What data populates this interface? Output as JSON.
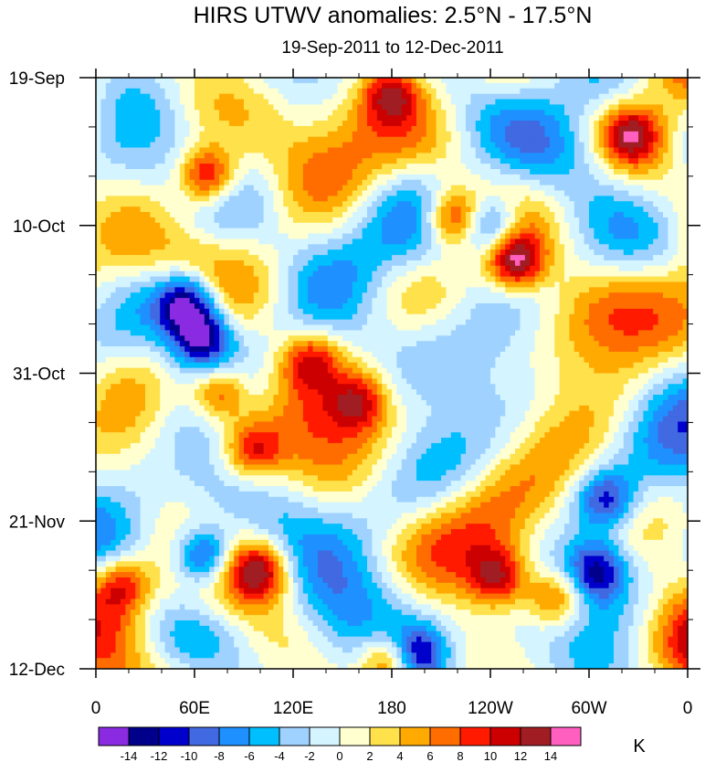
{
  "chart_data": {
    "type": "heatmap",
    "title": "HIRS UTWV anomalies: 2.5°N - 17.5°N",
    "subtitle": "19-Sep-2011 to 12-Dec-2011",
    "xlabel": "",
    "ylabel": "",
    "x_tick_labels": [
      "0",
      "60E",
      "120E",
      "180",
      "120W",
      "60W",
      "0"
    ],
    "x_tick_longitudes": [
      0,
      60,
      120,
      180,
      240,
      300,
      360
    ],
    "y_tick_labels": [
      "19-Sep",
      "10-Oct",
      "31-Oct",
      "21-Nov",
      "12-Dec"
    ],
    "y_tick_day_offsets": [
      0,
      21,
      42,
      63,
      84
    ],
    "xlim": [
      0,
      360
    ],
    "ylim_days": [
      0,
      84
    ],
    "colorbar": {
      "unit": "K",
      "levels": [
        -14,
        -12,
        -10,
        -8,
        -6,
        -4,
        -2,
        0,
        2,
        4,
        6,
        8,
        10,
        12,
        14
      ],
      "level_labels": [
        "-14",
        "-12",
        "-10",
        "-8",
        "-6",
        "-4",
        "-2",
        "0",
        "2",
        "4",
        "6",
        "8",
        "10",
        "12",
        "14"
      ],
      "colors": [
        "#8a2be2",
        "#00008b",
        "#0000cd",
        "#4169e1",
        "#1e90ff",
        "#00bfff",
        "#a0d2ff",
        "#d4f4ff",
        "#ffffd0",
        "#ffe14b",
        "#ffaa00",
        "#ff6d00",
        "#ff1a00",
        "#cc0000",
        "#a01e23",
        "#ff60c0"
      ]
    },
    "anomaly_centers": [
      {
        "lon": 68,
        "day": 14,
        "value": 14,
        "name": "positive"
      },
      {
        "lon": 218,
        "day": 20,
        "value": 13,
        "name": "positive"
      },
      {
        "lon": 255,
        "day": 26,
        "value": 15,
        "name": "positive"
      },
      {
        "lon": 55,
        "day": 32,
        "value": -14,
        "name": "negative"
      },
      {
        "lon": 65,
        "day": 37,
        "value": -13,
        "name": "negative"
      },
      {
        "lon": 75,
        "day": 45,
        "value": 11,
        "name": "positive"
      },
      {
        "lon": 95,
        "day": 53,
        "value": 10,
        "name": "positive"
      },
      {
        "lon": 65,
        "day": 68,
        "value": -15,
        "name": "negative"
      },
      {
        "lon": 100,
        "day": 70,
        "value": 12,
        "name": "positive"
      },
      {
        "lon": 15,
        "day": 72,
        "value": 10,
        "name": "positive"
      },
      {
        "lon": 195,
        "day": 82,
        "value": -13,
        "name": "negative"
      },
      {
        "lon": 180,
        "day": 83,
        "value": 12,
        "name": "positive"
      },
      {
        "lon": 245,
        "day": 71,
        "value": 11,
        "name": "positive"
      },
      {
        "lon": 280,
        "day": 74,
        "value": 10,
        "name": "positive"
      },
      {
        "lon": 240,
        "day": 21,
        "value": -11,
        "name": "negative"
      },
      {
        "lon": 180,
        "day": 2,
        "value": 10,
        "name": "positive"
      },
      {
        "lon": 325,
        "day": 8,
        "value": 11,
        "name": "positive"
      },
      {
        "lon": 310,
        "day": 60,
        "value": -10,
        "name": "negative"
      },
      {
        "lon": 305,
        "day": 70,
        "value": -11,
        "name": "negative"
      },
      {
        "lon": 130,
        "day": 40,
        "value": 9,
        "name": "positive"
      },
      {
        "lon": 160,
        "day": 46,
        "value": 9,
        "name": "positive"
      }
    ]
  }
}
